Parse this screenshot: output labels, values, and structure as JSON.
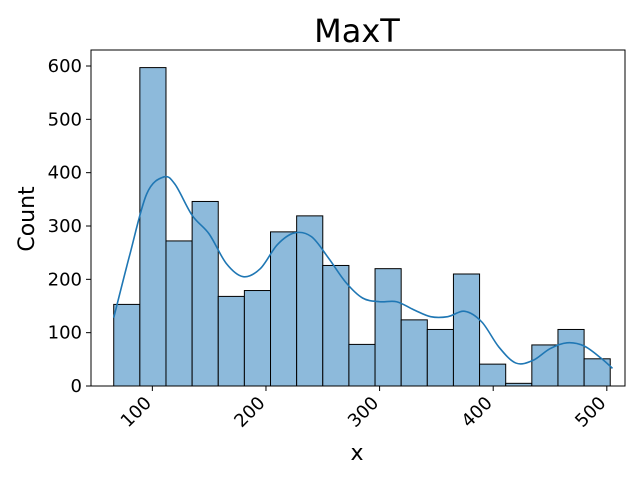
{
  "chart_data": {
    "type": "histogram",
    "title": "MaxT",
    "xlabel": "x",
    "ylabel": "Count",
    "xlim": [
      46,
      516
    ],
    "ylim": [
      0,
      630
    ],
    "x_ticks": [
      100,
      200,
      300,
      400,
      500
    ],
    "y_ticks": [
      0,
      100,
      200,
      300,
      400,
      500,
      600
    ],
    "bin_edges": [
      66,
      89,
      112,
      135,
      158,
      181,
      204,
      227,
      250,
      273,
      296,
      319,
      342,
      365,
      388,
      411,
      434,
      457,
      480,
      503
    ],
    "counts": [
      153,
      597,
      272,
      346,
      168,
      179,
      289,
      319,
      226,
      78,
      220,
      124,
      106,
      210,
      41,
      5,
      77,
      106,
      51
    ],
    "kde": {
      "x": [
        66,
        80,
        95,
        110,
        120,
        135,
        150,
        165,
        180,
        195,
        210,
        225,
        240,
        255,
        270,
        285,
        300,
        315,
        330,
        345,
        360,
        375,
        390,
        405,
        420,
        435,
        450,
        465,
        480,
        495,
        505
      ],
      "y": [
        128,
        245,
        360,
        392,
        378,
        320,
        285,
        230,
        205,
        220,
        265,
        287,
        280,
        240,
        195,
        165,
        158,
        158,
        143,
        130,
        130,
        140,
        120,
        73,
        43,
        48,
        70,
        81,
        75,
        52,
        33
      ]
    },
    "bar_color": "#8dbadb",
    "bar_edge_color": "#000000",
    "kde_color": "#1f77b4",
    "grid": false
  }
}
